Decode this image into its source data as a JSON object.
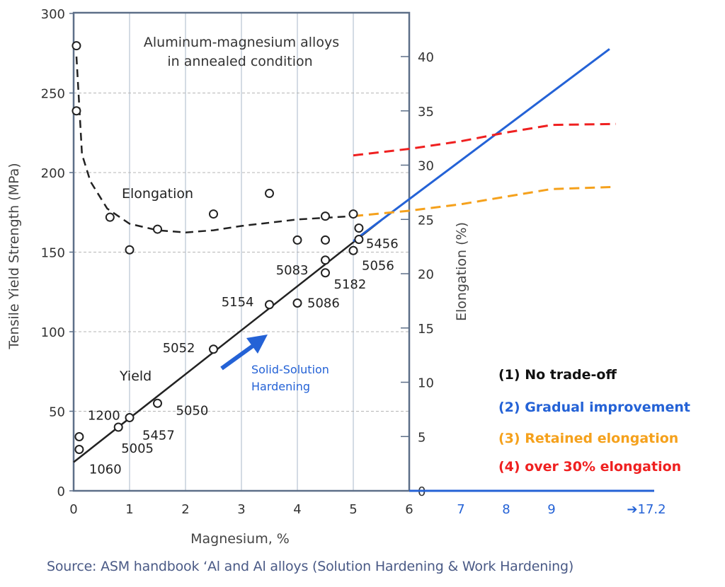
{
  "chart_data": {
    "type": "scatter",
    "title": "Aluminum-magnesium alloys",
    "subtitle": "in annealed condition",
    "xlabel": "Magnesium, %",
    "ylabel_left": "Tensile Yield Strength (MPa)",
    "ylabel_right": "Elongation (%)",
    "xlim": [
      0,
      6
    ],
    "ylim_left": [
      0,
      300
    ],
    "ylim_right": [
      0,
      44
    ],
    "x_ticks": [
      "0",
      "1",
      "2",
      "3",
      "4",
      "5",
      "6"
    ],
    "x_ticks_extended": [
      "7",
      "8",
      "9",
      "➔17.2"
    ],
    "y_ticks_left": [
      "0",
      "50",
      "100",
      "150",
      "200",
      "250",
      "300"
    ],
    "y_ticks_right": [
      "0",
      "5",
      "10",
      "15",
      "20",
      "25",
      "30",
      "35",
      "40"
    ],
    "grid": true,
    "yield_points": [
      {
        "alloy": "1060",
        "x": 0.1,
        "y": 26
      },
      {
        "alloy": "1200",
        "x": 0.1,
        "y": 34
      },
      {
        "alloy": "5005",
        "x": 0.8,
        "y": 40
      },
      {
        "alloy": "5457",
        "x": 1.0,
        "y": 46
      },
      {
        "alloy": "5050",
        "x": 1.5,
        "y": 55
      },
      {
        "alloy": "5052",
        "x": 2.5,
        "y": 89
      },
      {
        "alloy": "5154",
        "x": 3.5,
        "y": 117
      },
      {
        "alloy": "5086",
        "x": 4.0,
        "y": 118
      },
      {
        "alloy": "5182",
        "x": 4.5,
        "y": 137
      },
      {
        "alloy": "5083",
        "x": 4.5,
        "y": 145
      },
      {
        "alloy": "5056",
        "x": 5.0,
        "y": 151
      },
      {
        "alloy": "5456",
        "x": 5.1,
        "y": 158
      }
    ],
    "elongation_points": [
      {
        "x": 0.05,
        "y": 41
      },
      {
        "x": 0.05,
        "y": 35
      },
      {
        "x": 0.65,
        "y": 25.2
      },
      {
        "x": 1.0,
        "y": 22.2
      },
      {
        "x": 1.5,
        "y": 24.1
      },
      {
        "x": 2.5,
        "y": 25.5
      },
      {
        "x": 3.5,
        "y": 27.4
      },
      {
        "x": 4.0,
        "y": 23.1
      },
      {
        "x": 4.5,
        "y": 25.3
      },
      {
        "x": 4.5,
        "y": 23.1
      },
      {
        "x": 5.0,
        "y": 25.5
      },
      {
        "x": 5.1,
        "y": 24.2
      }
    ],
    "yield_fit": {
      "label": "Yield",
      "x": [
        0,
        5.5
      ],
      "y": [
        18,
        170
      ]
    },
    "elongation_fit": {
      "label": "Elongation",
      "x": [
        0.05,
        0.15,
        0.3,
        0.6,
        1.0,
        1.5,
        2.0,
        2.5,
        3.0,
        4.0,
        5.0
      ],
      "y": [
        40,
        31,
        28.5,
        26,
        24.6,
        24.0,
        23.8,
        24.0,
        24.4,
        25.0,
        25.3
      ]
    },
    "annotation": {
      "line1": "Solid-Solution",
      "line2": "Hardening"
    },
    "extension_x": [
      5.0,
      6.0,
      7.0,
      8.0,
      9.0,
      10.0
    ],
    "trend_lines": [
      {
        "name": "(1) No trade-off",
        "color": "#111111",
        "style": "text-only"
      },
      {
        "name": "(2) Gradual improvement",
        "color": "#2462d6",
        "style": "solid",
        "x": [
          5.0,
          9.9
        ],
        "y_elongation": [
          23,
          40.7
        ]
      },
      {
        "name": "(3) Retained elongation",
        "color": "#f5a11c",
        "style": "dashed",
        "x": [
          5.0,
          6.0,
          7.0,
          8.0,
          9.0,
          10.0
        ],
        "y_elongation": [
          25.3,
          25.8,
          26.4,
          27.1,
          27.8,
          28.0
        ]
      },
      {
        "name": "(4) over 30% elongation",
        "color": "#ef2020",
        "style": "dashed",
        "x": [
          5.0,
          6.0,
          7.0,
          8.0,
          9.0,
          10.0
        ],
        "y_elongation": [
          30.9,
          31.5,
          32.2,
          33.0,
          33.7,
          33.8
        ]
      }
    ]
  },
  "source": "Source: ASM handbook ‘Al and Al alloys (Solution Hardening & Work Hardening)"
}
